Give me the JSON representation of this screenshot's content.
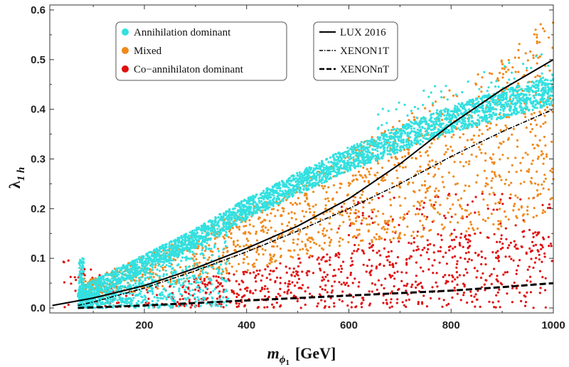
{
  "chart_data": {
    "type": "scatter",
    "xlabel": "m",
    "xlabel_sub": "ϕ",
    "xlabel_subsub": "1",
    "xlabel_unit": "[GeV]",
    "ylabel": "λ",
    "ylabel_sub": "1 h",
    "xlim": [
      15,
      1000
    ],
    "ylim": [
      -0.01,
      0.61
    ],
    "x_ticks": [
      200,
      400,
      600,
      800,
      1000
    ],
    "x_tick_labels": [
      "200",
      "400",
      "600",
      "800",
      "1000"
    ],
    "y_ticks": [
      0.0,
      0.1,
      0.2,
      0.3,
      0.4,
      0.5,
      0.6
    ],
    "y_tick_labels": [
      "0.0",
      "0.1",
      "0.2",
      "0.3",
      "0.4",
      "0.5",
      "0.6"
    ],
    "legend_scatter": [
      {
        "label": "Annihilation dominant",
        "color": "#33e0e0"
      },
      {
        "label": "Mixed",
        "color": "#f08a1c"
      },
      {
        "label": "Co−annihilaton dominant",
        "color": "#e01010"
      }
    ],
    "legend_lines": [
      {
        "label": "LUX 2016",
        "style": "solid"
      },
      {
        "label": "XENON1T",
        "style": "dotdash"
      },
      {
        "label": "XENONnT",
        "style": "dashed"
      }
    ],
    "lines": [
      {
        "name": "LUX 2016",
        "x": [
          20,
          100,
          200,
          300,
          400,
          500,
          600,
          700,
          800,
          900,
          1000
        ],
        "y": [
          0.005,
          0.02,
          0.045,
          0.08,
          0.12,
          0.165,
          0.22,
          0.29,
          0.37,
          0.44,
          0.5
        ]
      },
      {
        "name": "XENON1T",
        "x": [
          70,
          100,
          200,
          300,
          400,
          500,
          600,
          700,
          800,
          900,
          1000
        ],
        "y": [
          0.005,
          0.012,
          0.04,
          0.075,
          0.113,
          0.155,
          0.2,
          0.25,
          0.305,
          0.355,
          0.4
        ]
      },
      {
        "name": "XENONnT",
        "x": [
          70,
          200,
          300,
          400,
          500,
          600,
          700,
          800,
          900,
          1000
        ],
        "y": [
          0.0,
          0.005,
          0.01,
          0.015,
          0.02,
          0.025,
          0.03,
          0.035,
          0.042,
          0.05
        ]
      }
    ],
    "scatter_regions": {
      "annihilation": {
        "band_center": [
          [
            70,
            0.02
          ],
          [
            100,
            0.04
          ],
          [
            200,
            0.09
          ],
          [
            300,
            0.14
          ],
          [
            400,
            0.2
          ],
          [
            500,
            0.25
          ],
          [
            600,
            0.3
          ],
          [
            700,
            0.34
          ],
          [
            800,
            0.38
          ],
          [
            900,
            0.41
          ],
          [
            1000,
            0.44
          ]
        ],
        "band_width": 0.025,
        "spike": [
          [
            70,
            0.0
          ],
          [
            80,
            0.1
          ]
        ],
        "lower_fill": [
          [
            90,
            0.0
          ],
          [
            300,
            0.0
          ]
        ]
      },
      "mixed": {
        "x_range": [
          80,
          1000
        ],
        "y_upper": [
          [
            100,
            0.06
          ],
          [
            300,
            0.15
          ],
          [
            500,
            0.25
          ],
          [
            700,
            0.38
          ],
          [
            900,
            0.5
          ],
          [
            1000,
            0.6
          ]
        ],
        "y_lower": [
          [
            100,
            0.02
          ],
          [
            300,
            0.05
          ],
          [
            500,
            0.1
          ],
          [
            700,
            0.14
          ],
          [
            900,
            0.15
          ],
          [
            1000,
            0.2
          ]
        ]
      },
      "coannihilation": {
        "x_range": [
          40,
          1000
        ],
        "y_upper": [
          [
            50,
            0.1
          ],
          [
            200,
            0.04
          ],
          [
            400,
            0.08
          ],
          [
            600,
            0.12
          ],
          [
            800,
            0.15
          ],
          [
            1000,
            0.16
          ]
        ],
        "y_lower": [
          [
            50,
            0.0
          ],
          [
            1000,
            0.0
          ]
        ]
      }
    }
  }
}
